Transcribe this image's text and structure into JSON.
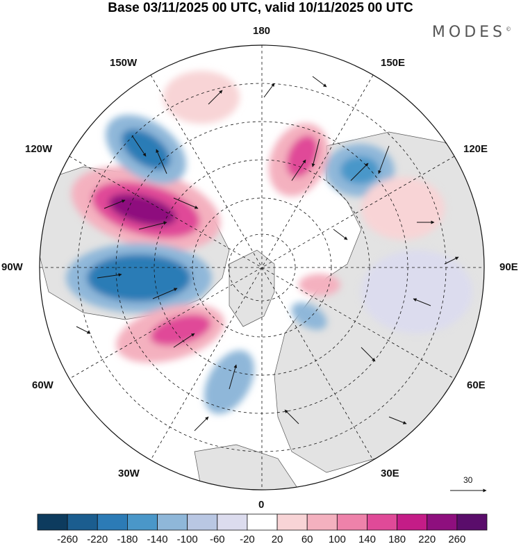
{
  "title": "Base 03/11/2025 00 UTC, valid 10/11/2025 00 UTC",
  "brand": "MODES",
  "brand_mark": "©",
  "longitude_labels": {
    "l180": "180",
    "l150e": "150E",
    "l120e": "120E",
    "l90e": "90E",
    "l60e": "60E",
    "l30e": "30E",
    "l0": "0",
    "l30w": "30W",
    "l60w": "60W",
    "l90w": "90W",
    "l120w": "120W",
    "l150w": "150W"
  },
  "reference_vector": "30",
  "colorbar": {
    "ticks": [
      "-260",
      "-220",
      "-180",
      "-140",
      "-100",
      "-60",
      "-20",
      "20",
      "60",
      "100",
      "140",
      "180",
      "220",
      "260"
    ],
    "colors": [
      "#0d3b5e",
      "#1b5d8f",
      "#2c7bb6",
      "#4a97c9",
      "#8fb7d9",
      "#b9c7e3",
      "#dcdcee",
      "#ffffff",
      "#f8d4d6",
      "#f4b1bf",
      "#ee82aa",
      "#e04a98",
      "#c41c87",
      "#8e0f7e",
      "#5a0d6b"
    ]
  },
  "colors": {
    "land": "#e3e3e3",
    "ocean": "#ffffff"
  }
}
